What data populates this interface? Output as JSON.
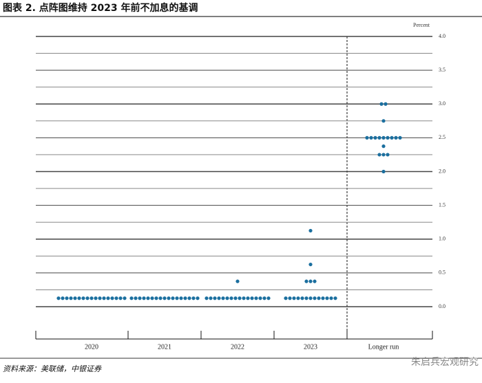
{
  "header": {
    "title": "图表 2. 点阵图维持 2023 年前不加息的基调"
  },
  "chart_data": {
    "type": "dot_plot",
    "y_label": "Percent",
    "categories": [
      "2020",
      "2021",
      "2022",
      "2023",
      "Longer run"
    ],
    "dots": [
      [
        0.125,
        0.125,
        0.125,
        0.125,
        0.125,
        0.125,
        0.125,
        0.125,
        0.125,
        0.125,
        0.125,
        0.125,
        0.125,
        0.125,
        0.125,
        0.125,
        0.125
      ],
      [
        0.125,
        0.125,
        0.125,
        0.125,
        0.125,
        0.125,
        0.125,
        0.125,
        0.125,
        0.125,
        0.125,
        0.125,
        0.125,
        0.125,
        0.125,
        0.125,
        0.125
      ],
      [
        0.125,
        0.125,
        0.125,
        0.125,
        0.125,
        0.125,
        0.125,
        0.125,
        0.125,
        0.125,
        0.125,
        0.125,
        0.125,
        0.125,
        0.125,
        0.125,
        0.375
      ],
      [
        0.125,
        0.125,
        0.125,
        0.125,
        0.125,
        0.125,
        0.125,
        0.125,
        0.125,
        0.125,
        0.125,
        0.125,
        0.125,
        0.375,
        0.375,
        0.375,
        0.625,
        1.125
      ],
      [
        2.0,
        2.25,
        2.25,
        2.25,
        2.375,
        2.5,
        2.5,
        2.5,
        2.5,
        2.5,
        2.5,
        2.5,
        2.5,
        2.5,
        2.75,
        3.0,
        3.0
      ]
    ],
    "color": "#1b6f9f",
    "ylim": [
      0,
      4
    ],
    "yticks": [
      {
        "value": 0,
        "label": "0.0"
      },
      0.5,
      {
        "value": 1,
        "label": "1.0"
      },
      1.5,
      {
        "value": 2,
        "label": "2.0"
      },
      2.5,
      {
        "value": 3,
        "label": "3.0"
      },
      3.5,
      {
        "value": 4,
        "label": "4.0"
      }
    ],
    "minor_yticks": [
      0.25,
      0.75,
      1.25,
      1.75,
      2.25,
      2.75,
      3.25,
      3.75
    ],
    "grid": true
  },
  "footer": {
    "source": "资料来源：美联储，中银证券",
    "watermark": "朱启兵宏观研究"
  }
}
